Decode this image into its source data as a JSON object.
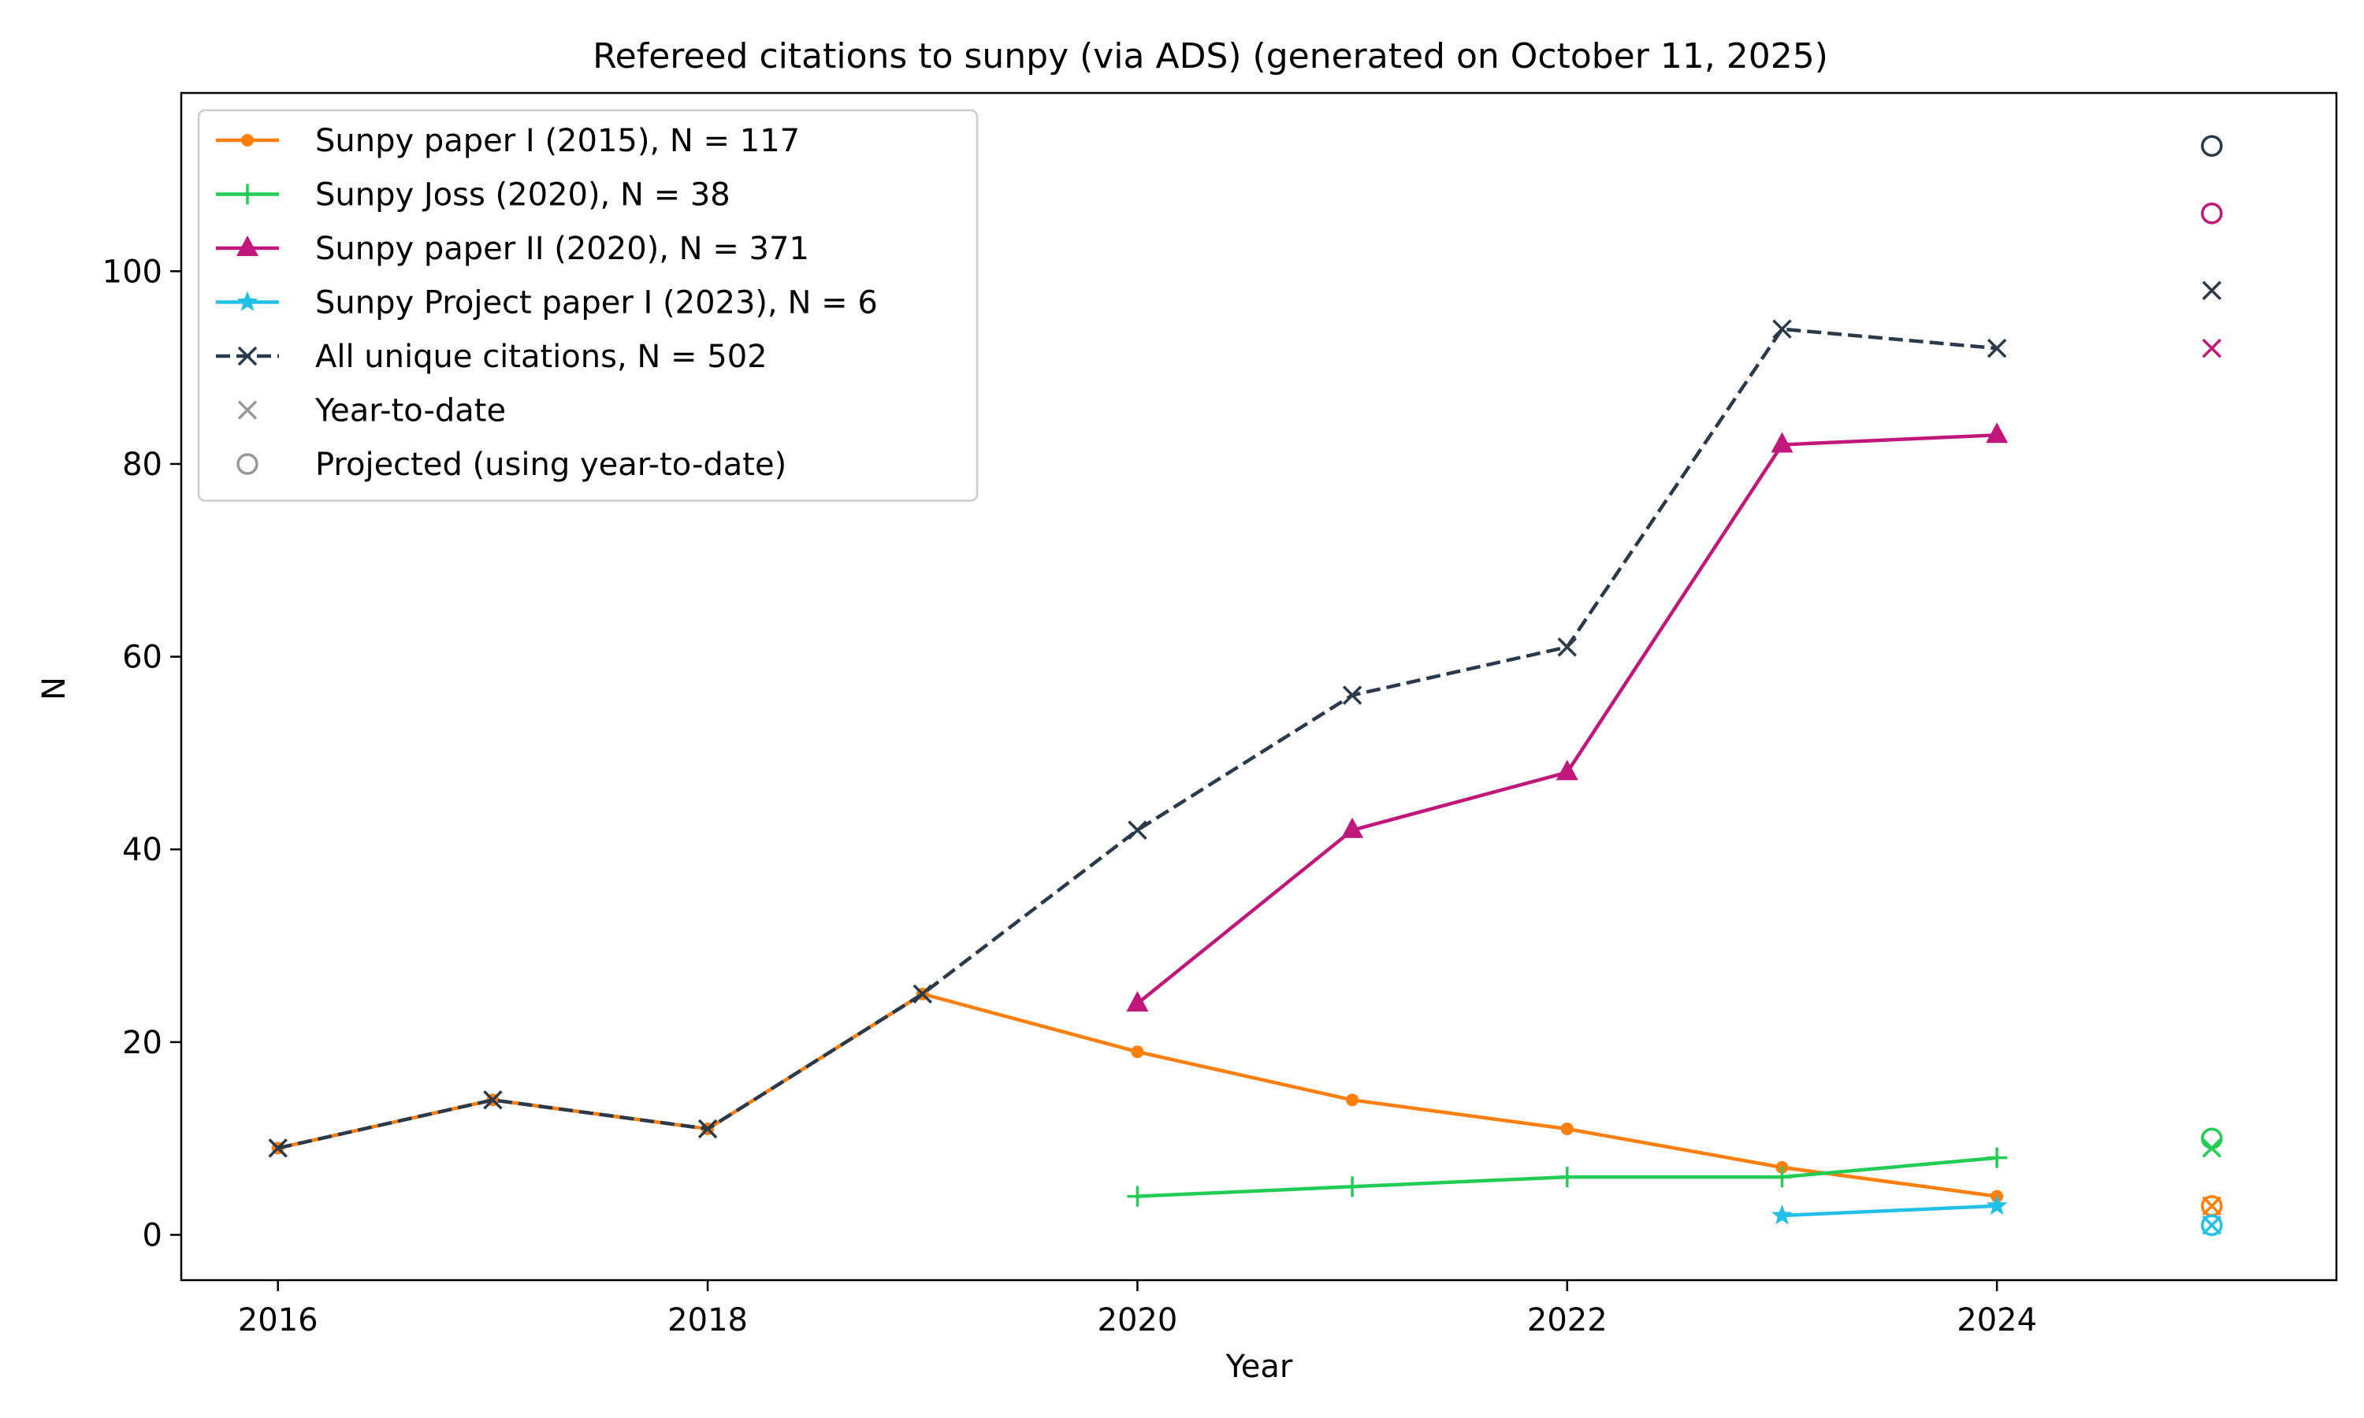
{
  "chart_data": {
    "type": "line",
    "title": "Refereed citations to sunpy (via ADS) (generated on October 11, 2025)",
    "xlabel": "Year",
    "ylabel": "N",
    "xlim": [
      2015.55,
      2025.58
    ],
    "ylim": [
      -4.7,
      118.5
    ],
    "x_ticks": [
      2016,
      2018,
      2020,
      2022,
      2024
    ],
    "x_tick_labels": [
      "2016",
      "2018",
      "2020",
      "2022",
      "2024"
    ],
    "y_ticks": [
      0,
      20,
      40,
      60,
      80,
      100
    ],
    "y_tick_labels": [
      "0",
      "20",
      "40",
      "60",
      "80",
      "100"
    ],
    "grid": false,
    "legend_position": "top-left",
    "series": [
      {
        "name": "Sunpy paper I (2015), N = 117",
        "color": "#ff7f0e",
        "marker": "dot",
        "linestyle": "solid",
        "x": [
          2016,
          2017,
          2018,
          2019,
          2020,
          2021,
          2022,
          2023,
          2024
        ],
        "y": [
          9,
          14,
          11,
          25,
          19,
          14,
          11,
          7,
          4
        ],
        "year_to_date": {
          "x": 2025,
          "y": 3
        },
        "projected": {
          "x": 2025,
          "y": 3
        }
      },
      {
        "name": "Sunpy Joss (2020), N = 38",
        "color": "#22cc55",
        "marker": "plus",
        "linestyle": "solid",
        "x": [
          2020,
          2021,
          2022,
          2023,
          2024
        ],
        "y": [
          4,
          5,
          6,
          6,
          8
        ],
        "year_to_date": {
          "x": 2025,
          "y": 9
        },
        "projected": {
          "x": 2025,
          "y": 10
        }
      },
      {
        "name": "Sunpy paper II (2020), N = 371",
        "color": "#c0187a",
        "marker": "triangle",
        "linestyle": "solid",
        "x": [
          2020,
          2021,
          2022,
          2023,
          2024
        ],
        "y": [
          24,
          42,
          48,
          82,
          83
        ],
        "year_to_date": {
          "x": 2025,
          "y": 92
        },
        "projected": {
          "x": 2025,
          "y": 106
        }
      },
      {
        "name": "Sunpy Project paper I (2023), N = 6",
        "color": "#22c0e6",
        "marker": "star",
        "linestyle": "solid",
        "x": [
          2023,
          2024
        ],
        "y": [
          2,
          3
        ],
        "year_to_date": {
          "x": 2025,
          "y": 1
        },
        "projected": {
          "x": 2025,
          "y": 1
        }
      },
      {
        "name": "All unique citations, N = 502",
        "color": "#2a3a4a",
        "marker": "x",
        "linestyle": "dashed",
        "x": [
          2016,
          2017,
          2018,
          2019,
          2020,
          2021,
          2022,
          2023,
          2024
        ],
        "y": [
          9,
          14,
          11,
          25,
          42,
          56,
          61,
          94,
          92
        ],
        "year_to_date": {
          "x": 2025,
          "y": 98
        },
        "projected": {
          "x": 2025,
          "y": 113
        }
      }
    ],
    "legend_extra": [
      {
        "name": "Year-to-date",
        "marker": "x",
        "color": "#999999"
      },
      {
        "name": "Projected (using year-to-date)",
        "marker": "circle",
        "color": "#999999"
      }
    ]
  }
}
